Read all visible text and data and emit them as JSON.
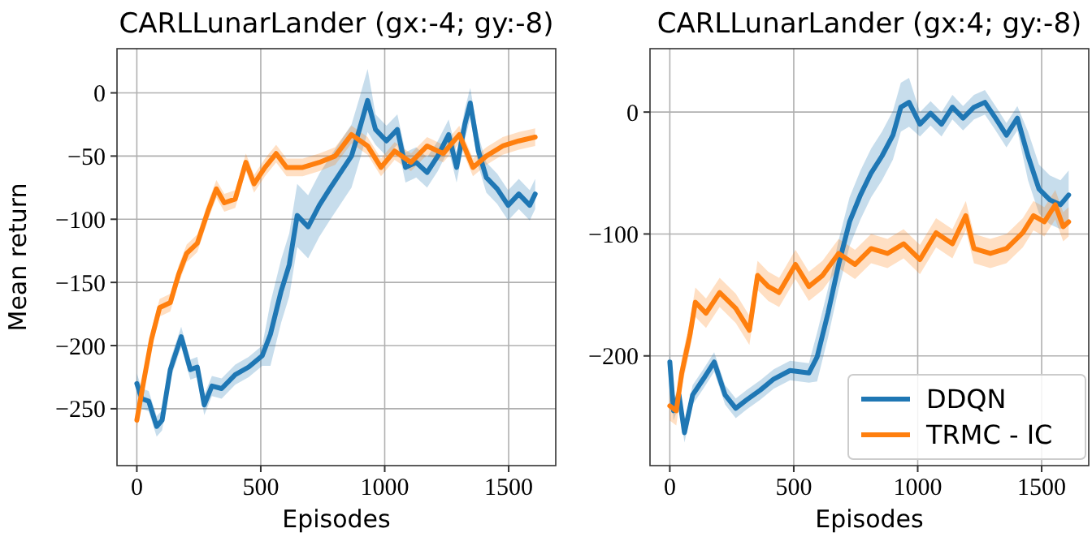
{
  "chart_data": [
    {
      "type": "line",
      "title": "CARLLunarLander (gx:-4; gy:-8)",
      "xlabel": "Episodes",
      "ylabel": "Mean return",
      "xlim": [
        -80,
        1690
      ],
      "xticks": [
        0,
        500,
        1000,
        1500
      ],
      "ylim": [
        -295,
        35
      ],
      "yticks": [
        -250,
        -200,
        -150,
        -100,
        -50,
        0
      ],
      "grid": true,
      "legend": false,
      "series": [
        {
          "color": "#1f77b4",
          "x": [
            0,
            20,
            48,
            80,
            102,
            135,
            179,
            216,
            244,
            272,
            303,
            342,
            397,
            451,
            506,
            539,
            582,
            615,
            647,
            691,
            736,
            778,
            822,
            866,
            898,
            931,
            963,
            1007,
            1051,
            1084,
            1127,
            1171,
            1214,
            1258,
            1290,
            1323,
            1345,
            1378,
            1410,
            1454,
            1498,
            1541,
            1585,
            1607
          ],
          "values": [
            -230,
            -242,
            -244,
            -264,
            -259,
            -219,
            -193,
            -219,
            -217,
            -247,
            -232,
            -234,
            -223,
            -217,
            -208,
            -191,
            -157,
            -136,
            -97,
            -106,
            -89,
            -76,
            -63,
            -50,
            -29,
            -6,
            -29,
            -38,
            -29,
            -59,
            -55,
            -63,
            -50,
            -33,
            -59,
            -25,
            -8,
            -46,
            -67,
            -76,
            -89,
            -80,
            -89,
            -80
          ],
          "lower": [
            -238,
            -250,
            -252,
            -272,
            -267,
            -227,
            -201,
            -227,
            -225,
            -255,
            -240,
            -242,
            -231,
            -225,
            -216,
            -216,
            -182,
            -161,
            -122,
            -131,
            -114,
            -101,
            -88,
            -75,
            -54,
            -31,
            -41,
            -50,
            -41,
            -71,
            -67,
            -75,
            -62,
            -45,
            -71,
            -37,
            -20,
            -58,
            -79,
            -88,
            -101,
            -92,
            -101,
            -92
          ],
          "upper": [
            -222,
            -234,
            -236,
            -256,
            -251,
            -211,
            -185,
            -211,
            -209,
            -239,
            -224,
            -226,
            -215,
            -209,
            -200,
            -166,
            -132,
            -111,
            -72,
            -81,
            -64,
            -51,
            -38,
            -25,
            -4,
            19,
            -17,
            -26,
            -17,
            -47,
            -43,
            -51,
            -38,
            -21,
            -47,
            -13,
            4,
            -34,
            -55,
            -64,
            -77,
            -68,
            -77,
            -68
          ]
        },
        {
          "color": "#ff7f0e",
          "x": [
            0,
            26,
            59,
            92,
            135,
            168,
            201,
            244,
            288,
            321,
            353,
            397,
            440,
            473,
            517,
            562,
            604,
            669,
            736,
            800,
            866,
            931,
            985,
            1040,
            1106,
            1171,
            1236,
            1301,
            1356,
            1410,
            1476,
            1541,
            1607
          ],
          "values": [
            -259,
            -230,
            -195,
            -170,
            -166,
            -144,
            -127,
            -119,
            -93,
            -76,
            -87,
            -84,
            -55,
            -72,
            -59,
            -48,
            -59,
            -59,
            -55,
            -50,
            -33,
            -42,
            -59,
            -46,
            -55,
            -42,
            -48,
            -33,
            -59,
            -50,
            -42,
            -38,
            -35
          ],
          "lower": [
            -266,
            -237,
            -202,
            -177,
            -173,
            -151,
            -134,
            -126,
            -100,
            -83,
            -94,
            -91,
            -62,
            -79,
            -66,
            -55,
            -66,
            -66,
            -62,
            -57,
            -40,
            -49,
            -66,
            -53,
            -62,
            -49,
            -55,
            -40,
            -66,
            -57,
            -49,
            -45,
            -42
          ],
          "upper": [
            -252,
            -223,
            -188,
            -163,
            -159,
            -137,
            -120,
            -112,
            -86,
            -69,
            -80,
            -77,
            -48,
            -65,
            -52,
            -41,
            -52,
            -52,
            -48,
            -43,
            -26,
            -35,
            -52,
            -39,
            -48,
            -35,
            -41,
            -26,
            -52,
            -43,
            -35,
            -31,
            -28
          ]
        }
      ]
    },
    {
      "type": "line",
      "title": "CARLLunarLander (gx:4; gy:-8)",
      "xlabel": "Episodes",
      "xlim": [
        -80,
        1690
      ],
      "xticks": [
        0,
        500,
        1000,
        1500
      ],
      "ylim": [
        -290,
        52
      ],
      "yticks": [
        -200,
        -100,
        0
      ],
      "grid": true,
      "legend": "bottom right",
      "series": [
        {
          "name": "DDQN",
          "color": "#1f77b4",
          "x": [
            0,
            15,
            37,
            59,
            92,
            135,
            179,
            223,
            266,
            310,
            365,
            419,
            485,
            561,
            594,
            638,
            681,
            725,
            769,
            812,
            856,
            900,
            932,
            965,
            1009,
            1052,
            1096,
            1140,
            1183,
            1227,
            1271,
            1314,
            1358,
            1402,
            1445,
            1489,
            1533,
            1576,
            1609
          ],
          "values": [
            -205,
            -245,
            -232,
            -263,
            -232,
            -219,
            -205,
            -232,
            -243,
            -236,
            -228,
            -219,
            -212,
            -214,
            -201,
            -165,
            -125,
            -90,
            -68,
            -50,
            -36,
            -19,
            4,
            8,
            -10,
            -1,
            -10,
            4,
            -5,
            4,
            8,
            -5,
            -19,
            -5,
            -36,
            -63,
            -72,
            -76,
            -68
          ],
          "lower": [
            -213,
            -253,
            -240,
            -271,
            -240,
            -227,
            -213,
            -240,
            -251,
            -244,
            -236,
            -227,
            -220,
            -222,
            -221,
            -185,
            -145,
            -110,
            -88,
            -70,
            -56,
            -39,
            -16,
            -12,
            -20,
            -11,
            -20,
            -6,
            -15,
            -6,
            -2,
            -15,
            -29,
            -15,
            -56,
            -83,
            -92,
            -96,
            -88
          ],
          "upper": [
            -197,
            -237,
            -224,
            -255,
            -224,
            -211,
            -197,
            -224,
            -235,
            -228,
            -220,
            -211,
            -204,
            -206,
            -181,
            -145,
            -105,
            -70,
            -48,
            -30,
            -16,
            1,
            24,
            28,
            0,
            9,
            0,
            14,
            5,
            14,
            18,
            5,
            -9,
            5,
            -16,
            -43,
            -52,
            -56,
            -48
          ]
        },
        {
          "name": "TRMC - IC",
          "color": "#ff7f0e",
          "x": [
            0,
            26,
            48,
            81,
            103,
            146,
            201,
            266,
            321,
            354,
            397,
            441,
            507,
            561,
            616,
            681,
            747,
            812,
            878,
            943,
            1009,
            1074,
            1140,
            1194,
            1227,
            1293,
            1358,
            1424,
            1467,
            1511,
            1555,
            1587,
            1609
          ],
          "values": [
            -241,
            -245,
            -214,
            -183,
            -156,
            -165,
            -148,
            -161,
            -179,
            -134,
            -143,
            -148,
            -125,
            -143,
            -134,
            -116,
            -125,
            -112,
            -116,
            -108,
            -121,
            -99,
            -108,
            -85,
            -112,
            -116,
            -112,
            -99,
            -85,
            -90,
            -76,
            -94,
            -90
          ],
          "lower": [
            -253,
            -257,
            -226,
            -195,
            -168,
            -177,
            -160,
            -173,
            -191,
            -146,
            -155,
            -160,
            -137,
            -155,
            -146,
            -128,
            -137,
            -124,
            -128,
            -120,
            -133,
            -111,
            -120,
            -97,
            -124,
            -128,
            -124,
            -111,
            -97,
            -102,
            -88,
            -106,
            -102
          ],
          "upper": [
            -229,
            -233,
            -202,
            -171,
            -144,
            -153,
            -136,
            -149,
            -167,
            -122,
            -131,
            -136,
            -113,
            -131,
            -122,
            -104,
            -113,
            -100,
            -104,
            -96,
            -109,
            -87,
            -96,
            -73,
            -100,
            -104,
            -100,
            -87,
            -73,
            -78,
            -64,
            -82,
            -78
          ]
        }
      ]
    }
  ]
}
